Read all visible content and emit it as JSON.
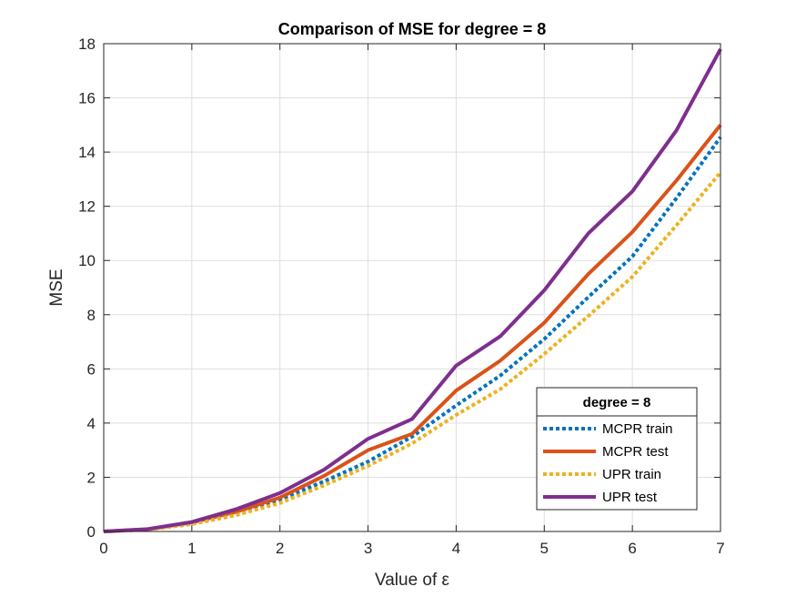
{
  "chart_data": {
    "type": "line",
    "title": "Comparison of MSE for degree = 8",
    "xlabel": "Value of ε",
    "ylabel": "MSE",
    "xlim": [
      0,
      7
    ],
    "ylim": [
      0,
      18
    ],
    "xticks": [
      0,
      1,
      2,
      3,
      4,
      5,
      6,
      7
    ],
    "yticks": [
      0,
      2,
      4,
      6,
      8,
      10,
      12,
      14,
      16,
      18
    ],
    "grid": true,
    "legend": {
      "title": "degree = 8",
      "placement": "bottom-right"
    },
    "x": [
      0,
      0.5,
      1,
      1.5,
      2,
      2.5,
      3,
      3.5,
      4,
      4.5,
      5,
      5.5,
      6,
      6.5,
      7
    ],
    "series": [
      {
        "name": "MCPR train",
        "color": "#0072BD",
        "style": "dotted",
        "values": [
          0,
          0.07,
          0.3,
          0.68,
          1.18,
          1.85,
          2.58,
          3.5,
          4.65,
          5.75,
          7.1,
          8.65,
          10.15,
          12.3,
          14.55
        ]
      },
      {
        "name": "MCPR test",
        "color": "#D95319",
        "style": "solid",
        "values": [
          0,
          0.08,
          0.33,
          0.72,
          1.25,
          2.05,
          3.0,
          3.6,
          5.2,
          6.3,
          7.7,
          9.5,
          11.05,
          12.95,
          15.0
        ]
      },
      {
        "name": "UPR train",
        "color": "#EDB120",
        "style": "dotted",
        "values": [
          0,
          0.07,
          0.27,
          0.6,
          1.05,
          1.7,
          2.42,
          3.25,
          4.3,
          5.25,
          6.55,
          7.95,
          9.4,
          11.3,
          13.25
        ]
      },
      {
        "name": "UPR test",
        "color": "#7E2F8E",
        "style": "solid",
        "values": [
          0,
          0.09,
          0.35,
          0.82,
          1.42,
          2.28,
          3.42,
          4.15,
          6.12,
          7.2,
          8.9,
          11.0,
          12.55,
          14.8,
          17.8
        ]
      }
    ]
  }
}
